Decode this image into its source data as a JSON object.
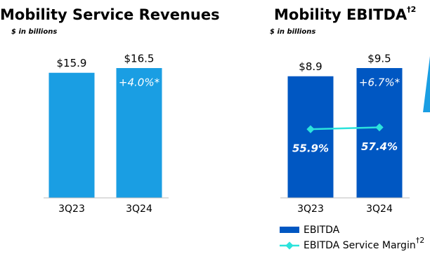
{
  "chart_data": [
    {
      "type": "bar",
      "title": "Mobility Service Revenues",
      "subtitle": "$ in billions",
      "categories": [
        "3Q23",
        "3Q24"
      ],
      "values": [
        15.9,
        16.5
      ],
      "value_labels": [
        "$15.9",
        "$16.5"
      ],
      "color": "#1a9ee3",
      "annotation": "+4.0%*"
    },
    {
      "type": "bar_line",
      "title": "Mobility EBITDA",
      "title_superscript": "†2",
      "subtitle": "$ in billions",
      "categories": [
        "3Q23",
        "3Q24"
      ],
      "series": [
        {
          "name": "EBITDA",
          "color": "#0057c2",
          "values": [
            8.9,
            9.5
          ],
          "value_labels": [
            "$8.9",
            "$9.5"
          ]
        },
        {
          "name": "EBITDA Service Margin",
          "name_superscript": "†2",
          "color": "#2ce3dc",
          "values": [
            55.9,
            57.4
          ],
          "value_labels": [
            "55.9%",
            "57.4%"
          ]
        }
      ],
      "annotation": "+6.7%*"
    }
  ]
}
